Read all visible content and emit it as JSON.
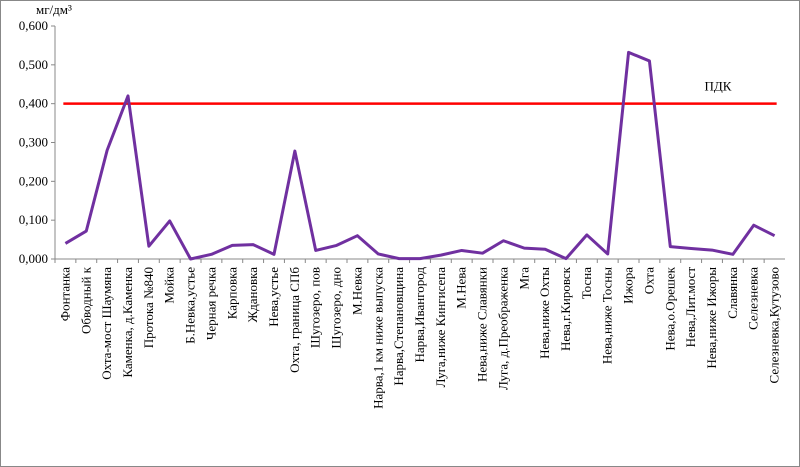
{
  "chart_data": {
    "type": "line",
    "y_label": "мг/дм³",
    "categories": [
      "Фонтанка",
      "Обводный к",
      "Охта-мост Шаумяна",
      "Каменка, д.Каменка",
      "Протока №840",
      "Мойка",
      "Б.Невка,устье",
      "Черная речка",
      "Карповка",
      "Ждановка",
      "Нева,устье",
      "Охта, граница СПб",
      "Шугозеро, пов",
      "Шугозеро, дно",
      "М.Невка",
      "Нарва,1 км ниже выпуска",
      "Нарва,Степановщина",
      "Нарва,Ивангород",
      "Луга,ниже Кингисепа",
      "М.Нева",
      "Нева,ниже Славянки",
      "Луга, д.Преображенка",
      "Мга",
      "Нева,ниже Охты",
      "Нева,г.Кировск",
      "Тосна",
      "Нева,ниже Тосны",
      "Ижора",
      "Охта",
      "Нева,о.Орешек",
      "Нева,Лит.мост",
      "Нева,ниже Ижоры",
      "Славянка",
      "Селезневка",
      "Селезневка,Кутузово"
    ],
    "series": [
      {
        "color": "#7030a0",
        "values": [
          0.04,
          0.072,
          0.28,
          0.42,
          0.033,
          0.098,
          0.0,
          0.012,
          0.035,
          0.037,
          0.012,
          0.278,
          0.022,
          0.035,
          0.06,
          0.013,
          0.001,
          0.001,
          0.01,
          0.022,
          0.015,
          0.047,
          0.028,
          0.025,
          0.001,
          0.062,
          0.013,
          0.532,
          0.51,
          0.032,
          0.027,
          0.023,
          0.012,
          0.087,
          0.06
        ]
      }
    ],
    "threshold": {
      "value": 0.4,
      "label": "ПДК",
      "color": "#ff0000"
    },
    "ylim": [
      0,
      0.6
    ],
    "yticks": [
      {
        "value": 0,
        "label": "0,000"
      },
      {
        "value": 0.1,
        "label": "0,100"
      },
      {
        "value": 0.2,
        "label": "0,200"
      },
      {
        "value": 0.3,
        "label": "0,300"
      },
      {
        "value": 0.4,
        "label": "0,400"
      },
      {
        "value": 0.5,
        "label": "0,500"
      },
      {
        "value": 0.6,
        "label": "0,600"
      }
    ],
    "grid": false
  }
}
